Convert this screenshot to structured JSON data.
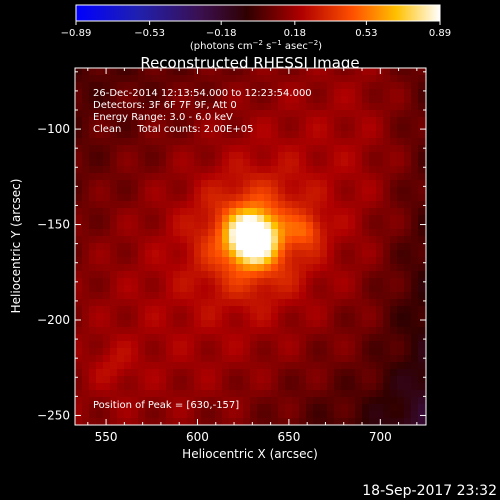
{
  "colorbar": {
    "ticks": [
      "−0.89",
      "−0.53",
      "−0.18",
      "0.18",
      "0.53",
      "0.89"
    ],
    "units_main": "(photons cm",
    "units_sup1": "−2",
    "units_mid": " s",
    "units_sup2": "−1",
    "units_mid2": " asec",
    "units_sup3": "−2",
    "units_end": ")"
  },
  "info": {
    "time": "26-Dec-2014 12:13:54.000 to 12:23:54.000",
    "detectors": "Detectors: 3F 6F 7F 9F, Att 0",
    "energy": "Energy Range: 3.0 - 6.0 keV",
    "clean": "Clean     Total counts: 2.00E+05",
    "peak": "Position of Peak = [630,-157]"
  },
  "footer": {
    "date": "18-Sep-2017 23:32"
  },
  "chart_data": {
    "type": "heatmap",
    "title": "Reconstructed RHESSI Image",
    "xlabel": "Heliocentric X (arcsec)",
    "ylabel": "Heliocentric Y (arcsec)",
    "xlim": [
      533,
      725
    ],
    "ylim": [
      -255,
      -68
    ],
    "xticks": [
      550,
      600,
      650,
      700
    ],
    "yticks": [
      -100,
      -150,
      -200,
      -250
    ],
    "xtick_labels": [
      "550",
      "600",
      "650",
      "700"
    ],
    "ytick_labels": [
      "−100",
      "−150",
      "−200",
      "−250"
    ],
    "value_range": [
      -0.89,
      0.89
    ],
    "peak": [
      630,
      -157
    ],
    "colors": {
      "background": "#000000",
      "text": "#ffffff"
    }
  }
}
